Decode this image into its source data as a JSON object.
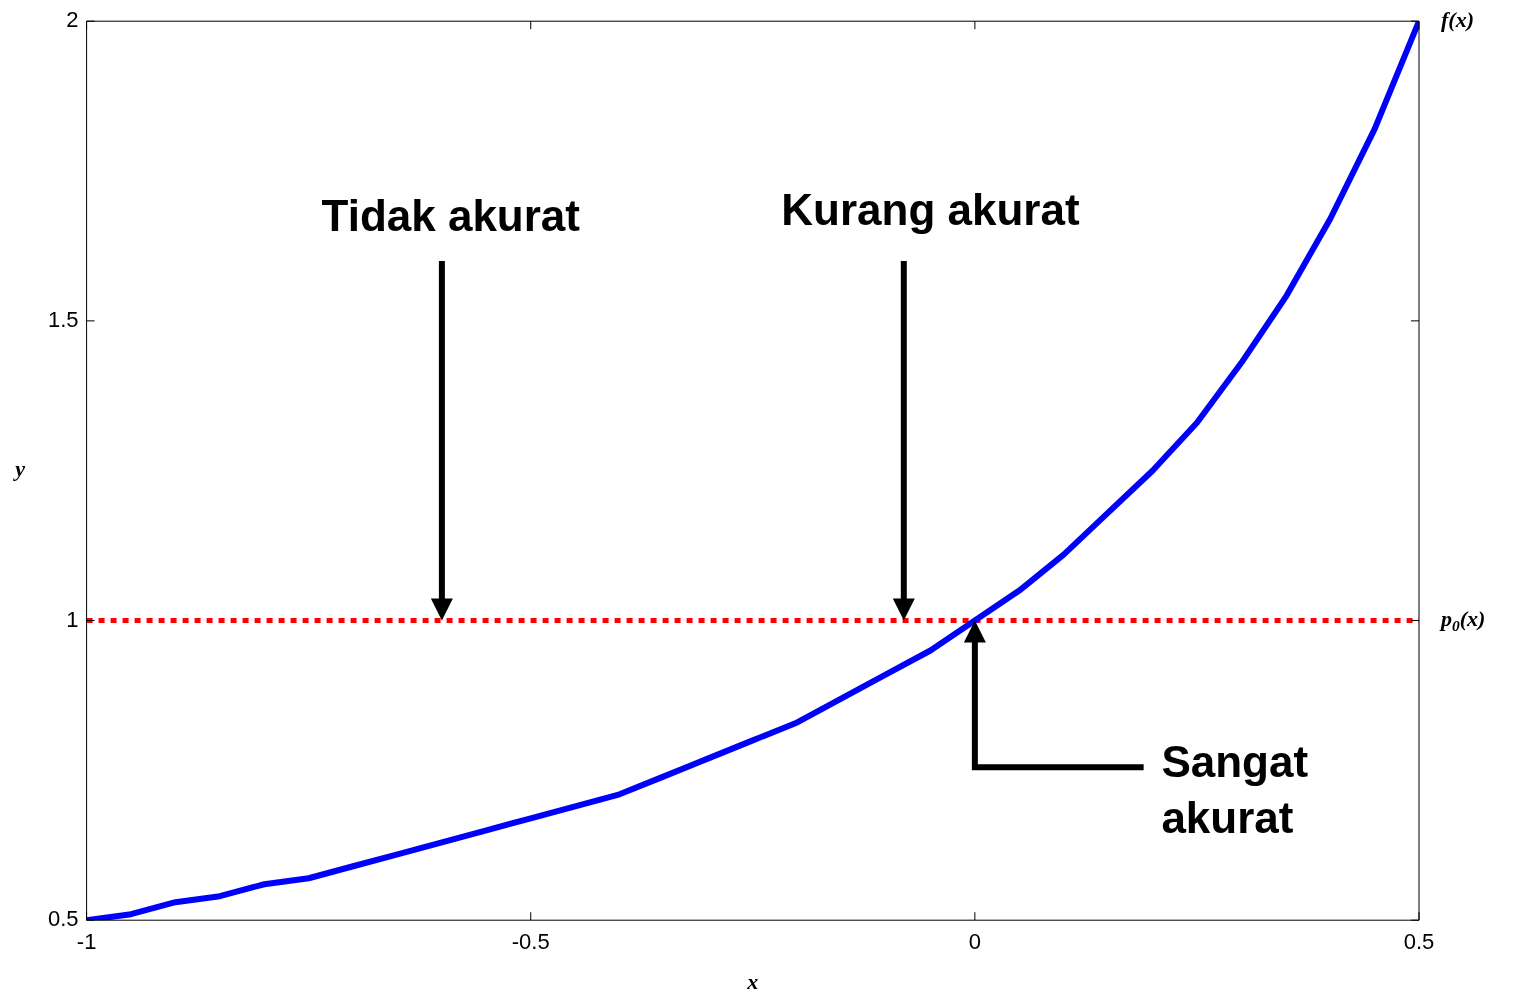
{
  "chart_data": {
    "type": "line",
    "xlabel": "x",
    "ylabel": "y",
    "xlim": [
      -1,
      0.5
    ],
    "ylim": [
      0.5,
      2
    ],
    "xticks": [
      -1,
      -0.5,
      0,
      0.5
    ],
    "yticks": [
      0.5,
      1,
      1.5,
      2
    ],
    "grid": false,
    "legend": false,
    "marker": "none",
    "series": [
      {
        "name": "f(x)",
        "color": "#0000ff",
        "line_style": "solid",
        "x": [
          -1,
          -0.95,
          -0.9,
          -0.85,
          -0.8,
          -0.75,
          -0.7,
          -0.65,
          -0.6,
          -0.55,
          -0.5,
          -0.45,
          -0.4,
          -0.35,
          -0.3,
          -0.25,
          -0.2,
          -0.15,
          -0.1,
          -0.05,
          0,
          0.05,
          0.1,
          0.15,
          0.2,
          0.25,
          0.3,
          0.35,
          0.4,
          0.45,
          0.5
        ],
        "values": [
          0.5,
          0.51,
          0.53,
          0.54,
          0.56,
          0.57,
          0.59,
          0.61,
          0.63,
          0.65,
          0.67,
          0.69,
          0.71,
          0.74,
          0.77,
          0.8,
          0.83,
          0.87,
          0.91,
          0.95,
          1,
          1.05,
          1.11,
          1.18,
          1.25,
          1.33,
          1.43,
          1.54,
          1.67,
          1.82,
          2
        ]
      },
      {
        "name": "p$_{0}$(x)",
        "color": "#ff0000",
        "line_style": "dotted",
        "x": [
          -1,
          0.5
        ],
        "values": [
          1,
          1
        ]
      }
    ],
    "annotations": [
      "Tidak akurat",
      "Kurang akurat",
      "Sangat akurat"
    ]
  }
}
